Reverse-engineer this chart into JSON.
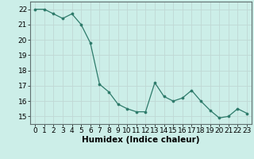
{
  "x": [
    0,
    1,
    2,
    3,
    4,
    5,
    6,
    7,
    8,
    9,
    10,
    11,
    12,
    13,
    14,
    15,
    16,
    17,
    18,
    19,
    20,
    21,
    22,
    23
  ],
  "y": [
    22,
    22,
    21.7,
    21.4,
    21.7,
    21.0,
    19.8,
    17.1,
    16.6,
    15.8,
    15.5,
    15.3,
    15.3,
    17.2,
    16.3,
    16.0,
    16.2,
    16.7,
    16.0,
    15.4,
    14.9,
    15.0,
    15.5,
    15.2
  ],
  "line_color": "#2d7a6a",
  "marker_color": "#2d7a6a",
  "bg_color": "#cceee8",
  "grid_color": "#c0d8d4",
  "xlabel": "Humidex (Indice chaleur)",
  "ylim": [
    14.5,
    22.5
  ],
  "xlim": [
    -0.5,
    23.5
  ],
  "yticks": [
    15,
    16,
    17,
    18,
    19,
    20,
    21,
    22
  ],
  "xticks": [
    0,
    1,
    2,
    3,
    4,
    5,
    6,
    7,
    8,
    9,
    10,
    11,
    12,
    13,
    14,
    15,
    16,
    17,
    18,
    19,
    20,
    21,
    22,
    23
  ],
  "tick_fontsize": 6.5,
  "xlabel_fontsize": 7.5
}
